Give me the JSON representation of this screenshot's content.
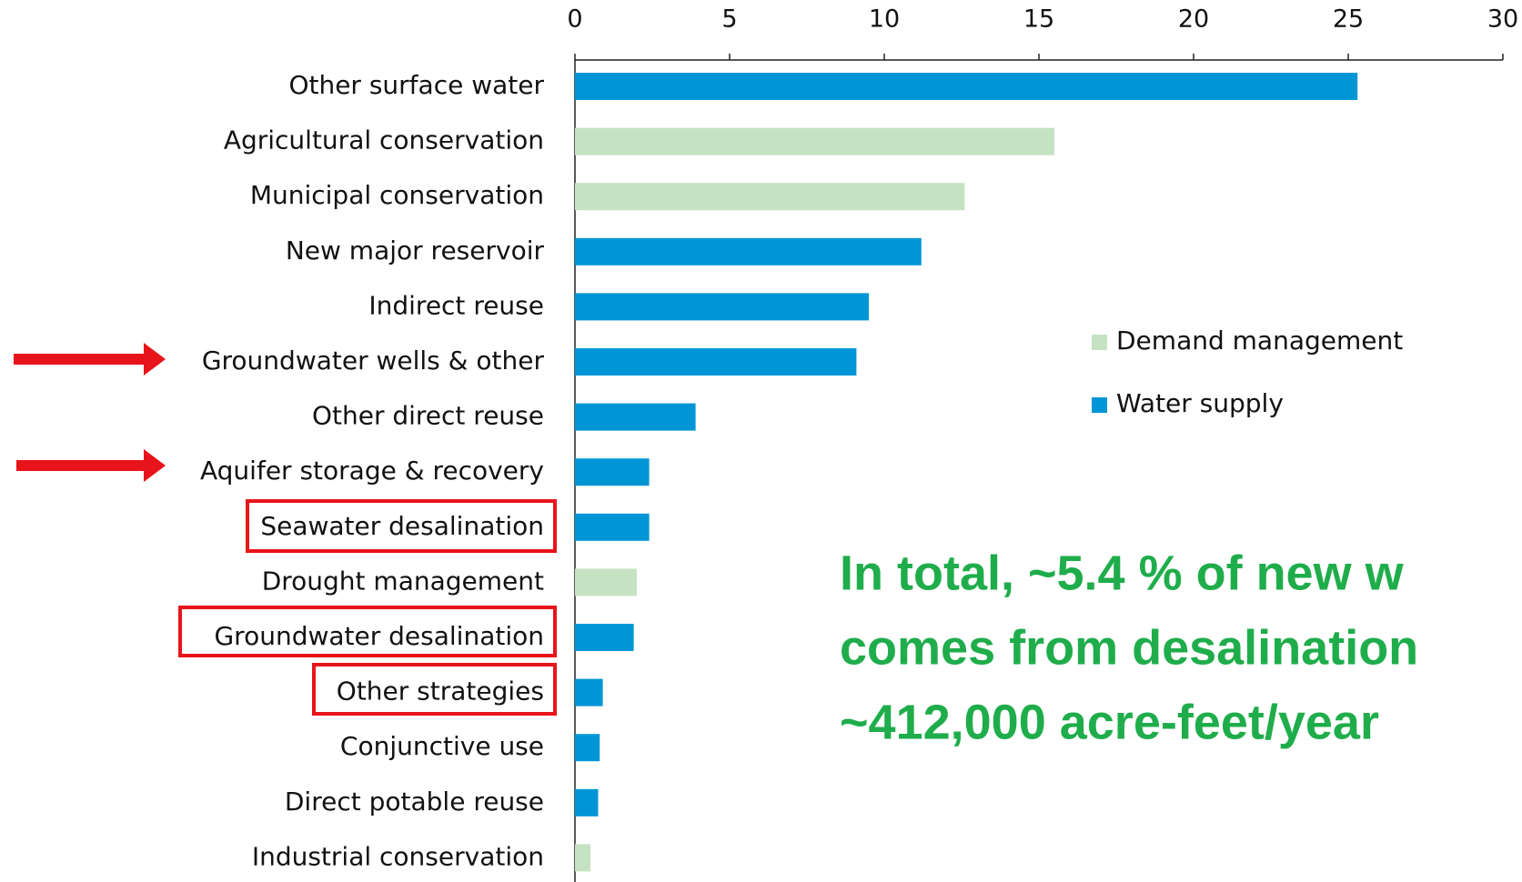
{
  "chart_data": {
    "type": "bar",
    "orientation": "horizontal",
    "categories": [
      "Other surface water",
      "Agricultural conservation",
      "Municipal conservation",
      "New major reservoir",
      "Indirect reuse",
      "Groundwater wells & other",
      "Other direct reuse",
      "Aquifer storage & recovery",
      "Seawater desalination",
      "Drought management",
      "Groundwater desalination",
      "Other strategies",
      "Conjunctive use",
      "Direct potable reuse",
      "Industrial conservation"
    ],
    "series": [
      {
        "name": "Demand management",
        "color": "#c5e3c2",
        "values": [
          null,
          15.5,
          12.6,
          null,
          null,
          null,
          null,
          null,
          null,
          2.0,
          null,
          null,
          null,
          null,
          0.5
        ]
      },
      {
        "name": "Water supply",
        "color": "#0096d6",
        "values": [
          25.3,
          null,
          null,
          11.2,
          9.5,
          9.1,
          3.9,
          2.4,
          2.4,
          null,
          1.9,
          0.9,
          0.8,
          0.75,
          null
        ]
      }
    ],
    "xlim": [
      0,
      30
    ],
    "xticks": [
      0,
      5,
      10,
      15,
      20,
      25,
      30
    ],
    "annotation": [
      "In total, ~5.4 % of new w",
      "comes from desalination",
      "~412,000 acre-feet/year"
    ],
    "annotation_color": "#1fad4b"
  }
}
